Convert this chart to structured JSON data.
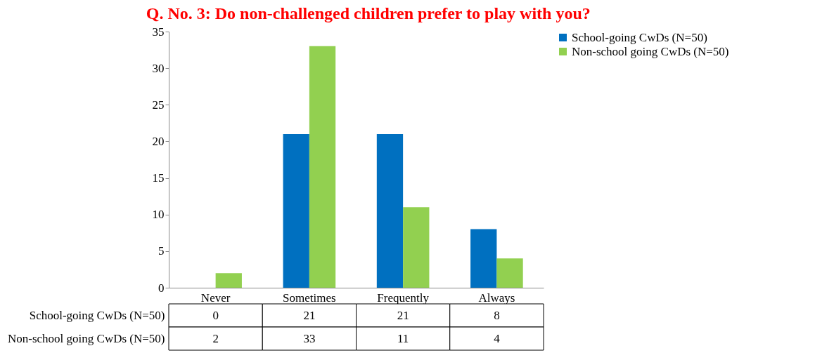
{
  "chart_data": {
    "type": "bar",
    "title": "Q. No. 3: Do non-challenged children prefer to play with you?",
    "categories": [
      "Never",
      "Sometimes",
      "Frequently",
      "Always"
    ],
    "series": [
      {
        "name": "School-going CwDs (N=50)",
        "color": "#0070c0",
        "values": [
          0,
          21,
          21,
          8
        ]
      },
      {
        "name": "Non-school going CwDs (N=50)",
        "color": "#92d050",
        "values": [
          2,
          33,
          11,
          4
        ]
      }
    ],
    "ylim": [
      0,
      35
    ],
    "yticks": [
      0,
      5,
      10,
      15,
      20,
      25,
      30,
      35
    ],
    "grid": false,
    "legend": "right",
    "data_labels": true
  }
}
